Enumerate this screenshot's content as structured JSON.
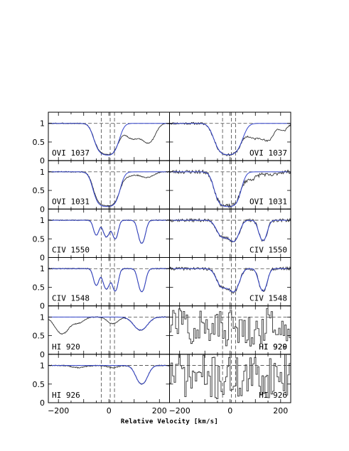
{
  "chart_data": {
    "type": "line",
    "layout": "grid of 6 rows by 2 columns of absorption-line panels",
    "xlabel": "Relative Velocity [km/s]",
    "ylabel": "",
    "xlim": [
      -240,
      240
    ],
    "ylim": [
      0,
      1.3
    ],
    "xticks": [
      -200,
      0,
      200
    ],
    "xtick_labels": [
      "−200",
      "0",
      "200"
    ],
    "yticks": [
      0,
      0.5,
      1
    ],
    "ytick_labels": [
      "0",
      "0.5",
      "1"
    ],
    "marker_velocities": [
      -30,
      5,
      22
    ],
    "continuum_level": 1,
    "colors": {
      "data": "#333333",
      "model": "#3344cc",
      "frame": "#000000",
      "dashed": "#444444"
    },
    "rows": [
      {
        "label": "OVI  1037",
        "label_left": true
      },
      {
        "label": "OVI  1031",
        "label_left": true
      },
      {
        "label": "CIV  1550",
        "label_left": true
      },
      {
        "label": "CIV  1548",
        "label_left": true
      },
      {
        "label": "HI  920",
        "label_left": true
      },
      {
        "label": "HI  926",
        "label_left": true
      }
    ],
    "right_labels": [
      "OVI  1037",
      "OVI  1031",
      "CIV  1550",
      "CIV  1548",
      "HI  920",
      "HI  926"
    ],
    "right_label_overlay": [
      "",
      "",
      "",
      "",
      "HI  929",
      ""
    ],
    "panels": [
      {
        "row": 0,
        "col": 0,
        "kind": "smooth",
        "model": true,
        "components": [
          [
            -30,
            0.72,
            22
          ],
          [
            10,
            0.76,
            22
          ],
          [
            95,
            0.42,
            30
          ],
          [
            158,
            0.5,
            22
          ]
        ],
        "model_components": [
          [
            -30,
            0.74,
            22
          ],
          [
            10,
            0.78,
            22
          ]
        ]
      },
      {
        "row": 0,
        "col": 1,
        "kind": "noisy",
        "noise": 0.03,
        "seed": 11,
        "model": true,
        "components": [
          [
            -30,
            0.75,
            25
          ],
          [
            15,
            0.75,
            25
          ],
          [
            95,
            0.4,
            25
          ],
          [
            150,
            0.45,
            20
          ],
          [
            210,
            0.2,
            15
          ]
        ],
        "model_components": [
          [
            -30,
            0.75,
            25
          ],
          [
            15,
            0.75,
            25
          ]
        ]
      },
      {
        "row": 1,
        "col": 0,
        "kind": "smooth",
        "model": true,
        "components": [
          [
            -30,
            0.82,
            22
          ],
          [
            10,
            0.85,
            22
          ],
          [
            70,
            0.12,
            30
          ],
          [
            150,
            0.15,
            25
          ]
        ],
        "model_components": [
          [
            -30,
            0.86,
            22
          ],
          [
            10,
            0.88,
            22
          ]
        ]
      },
      {
        "row": 1,
        "col": 1,
        "kind": "noisy",
        "noise": 0.05,
        "seed": 23,
        "model": true,
        "components": [
          [
            -30,
            0.85,
            22
          ],
          [
            10,
            0.85,
            22
          ],
          [
            80,
            0.2,
            25
          ],
          [
            160,
            0.1,
            20
          ]
        ],
        "model_components": [
          [
            -30,
            0.86,
            22
          ],
          [
            10,
            0.88,
            22
          ]
        ]
      },
      {
        "row": 2,
        "col": 0,
        "kind": "smooth",
        "model": true,
        "components": [
          [
            -50,
            0.4,
            10
          ],
          [
            -10,
            0.45,
            12
          ],
          [
            25,
            0.5,
            10
          ],
          [
            130,
            0.62,
            12
          ]
        ],
        "model_components": [
          [
            -50,
            0.4,
            10
          ],
          [
            -10,
            0.45,
            12
          ],
          [
            25,
            0.5,
            10
          ],
          [
            130,
            0.62,
            12
          ]
        ]
      },
      {
        "row": 2,
        "col": 1,
        "kind": "noisy",
        "noise": 0.04,
        "seed": 37,
        "model": true,
        "components": [
          [
            -30,
            0.45,
            20
          ],
          [
            15,
            0.55,
            18
          ],
          [
            130,
            0.55,
            14
          ]
        ],
        "model_components": [
          [
            -30,
            0.45,
            20
          ],
          [
            15,
            0.55,
            18
          ],
          [
            130,
            0.55,
            14
          ]
        ]
      },
      {
        "row": 3,
        "col": 0,
        "kind": "smooth",
        "model": true,
        "components": [
          [
            -50,
            0.45,
            10
          ],
          [
            -10,
            0.55,
            12
          ],
          [
            25,
            0.6,
            10
          ],
          [
            130,
            0.62,
            12
          ]
        ],
        "model_components": [
          [
            -50,
            0.45,
            10
          ],
          [
            -10,
            0.55,
            12
          ],
          [
            25,
            0.6,
            10
          ],
          [
            130,
            0.62,
            12
          ]
        ]
      },
      {
        "row": 3,
        "col": 1,
        "kind": "noisy",
        "noise": 0.04,
        "seed": 41,
        "model": true,
        "components": [
          [
            -30,
            0.5,
            20
          ],
          [
            15,
            0.6,
            18
          ],
          [
            130,
            0.6,
            14
          ]
        ],
        "model_components": [
          [
            -30,
            0.5,
            20
          ],
          [
            15,
            0.6,
            18
          ],
          [
            130,
            0.6,
            14
          ]
        ]
      },
      {
        "row": 4,
        "col": 0,
        "kind": "smooth",
        "model": true,
        "components": [
          [
            -185,
            0.45,
            25
          ],
          [
            -120,
            0.15,
            20
          ],
          [
            15,
            0.18,
            20
          ],
          [
            125,
            0.35,
            25
          ]
        ],
        "model_components": [
          [
            125,
            0.35,
            25
          ]
        ]
      },
      {
        "row": 4,
        "col": 1,
        "kind": "step",
        "noise": 0.5,
        "seed": 57,
        "model": false,
        "components": [
          [
            0,
            0.3,
            200
          ]
        ]
      },
      {
        "row": 5,
        "col": 0,
        "kind": "smooth",
        "model": true,
        "components": [
          [
            -120,
            0.06,
            25
          ],
          [
            15,
            0.06,
            20
          ],
          [
            130,
            0.5,
            20
          ]
        ],
        "model_components": [
          [
            130,
            0.5,
            20
          ]
        ]
      },
      {
        "row": 5,
        "col": 1,
        "kind": "step",
        "noise": 0.6,
        "seed": 71,
        "model": false,
        "components": [
          [
            0,
            0.35,
            200
          ]
        ]
      }
    ]
  }
}
